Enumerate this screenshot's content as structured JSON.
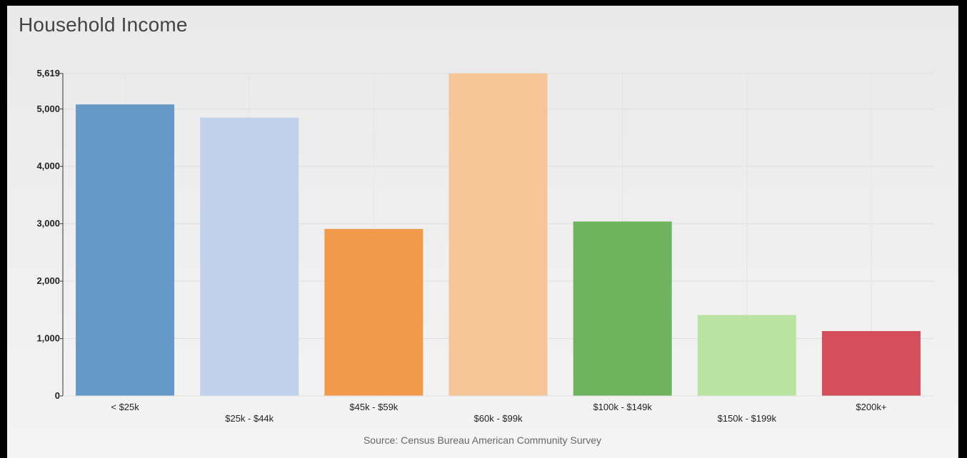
{
  "title": "Household Income",
  "source": "Source: Census Bureau American Community Survey",
  "chart_data": {
    "type": "bar",
    "title": "Household Income",
    "xlabel": "",
    "ylabel": "",
    "ylim": [
      0,
      5619
    ],
    "yticks": [
      0,
      1000,
      2000,
      3000,
      4000,
      5000,
      5619
    ],
    "ytick_labels": [
      "0",
      "1,000",
      "2,000",
      "3,000",
      "4,000",
      "5,000",
      "5,619"
    ],
    "grid": true,
    "legend": "none",
    "categories": [
      "< $25k",
      "$25k - $44k",
      "$45k - $59k",
      "$60k - $99k",
      "$100k - $149k",
      "$150k - $199k",
      "$200k+"
    ],
    "values": [
      5080,
      4850,
      2910,
      5619,
      3040,
      1410,
      1130
    ],
    "colors": [
      "#6698c8",
      "#c1d1eb",
      "#f29a4c",
      "#f5c597",
      "#70b35f",
      "#b8e3a0",
      "#d44e5c"
    ]
  }
}
